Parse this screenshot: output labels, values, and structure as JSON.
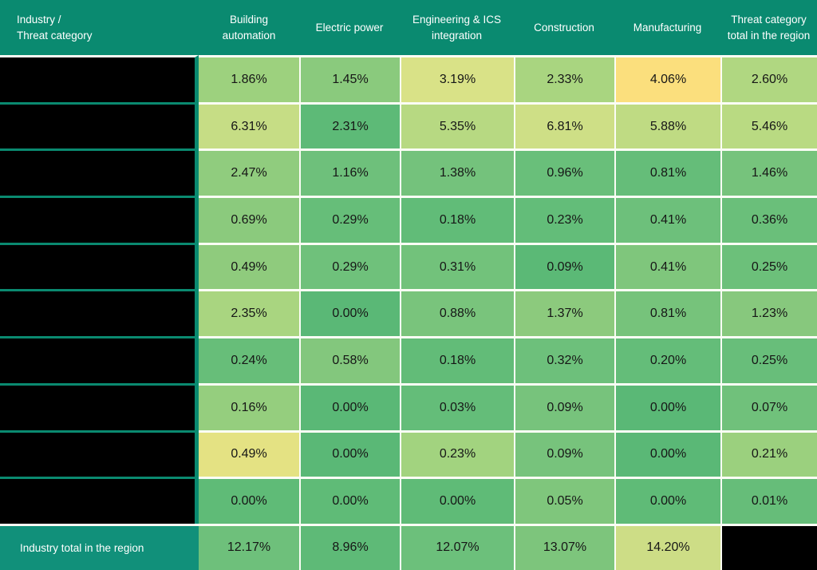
{
  "colors": {
    "header_bg": "#0a8a70",
    "footer_label_bg": "#11907a",
    "separator": "#fbfdf5",
    "redacted": "#000000",
    "header_text": "#ffffff",
    "value_text": "#161616"
  },
  "header": {
    "corner_line1": "Industry /",
    "corner_line2": "Threat category",
    "columns": [
      "Building automation",
      "Electric power",
      "Engineering & ICS integration",
      "Construction",
      "Manufacturing",
      "Threat category total in the region"
    ]
  },
  "body": {
    "rows": [
      [
        {
          "v": "1.86%",
          "bg": "#9dd17e"
        },
        {
          "v": "1.45%",
          "bg": "#8aca7d"
        },
        {
          "v": "3.19%",
          "bg": "#d9e287"
        },
        {
          "v": "2.33%",
          "bg": "#a9d580"
        },
        {
          "v": "4.06%",
          "bg": "#fbdf7d"
        },
        {
          "v": "2.60%",
          "bg": "#b0d781"
        }
      ],
      [
        {
          "v": "6.31%",
          "bg": "#c6dd85"
        },
        {
          "v": "2.31%",
          "bg": "#5dba77"
        },
        {
          "v": "5.35%",
          "bg": "#b7d982"
        },
        {
          "v": "6.81%",
          "bg": "#cedf86"
        },
        {
          "v": "5.88%",
          "bg": "#bfdb83"
        },
        {
          "v": "5.46%",
          "bg": "#b9da82"
        }
      ],
      [
        {
          "v": "2.47%",
          "bg": "#90cc7e"
        },
        {
          "v": "1.16%",
          "bg": "#6ec07b"
        },
        {
          "v": "1.38%",
          "bg": "#74c27c"
        },
        {
          "v": "0.96%",
          "bg": "#69bf7a"
        },
        {
          "v": "0.81%",
          "bg": "#65bd79"
        },
        {
          "v": "1.46%",
          "bg": "#76c37c"
        }
      ],
      [
        {
          "v": "0.69%",
          "bg": "#8bca7d"
        },
        {
          "v": "0.29%",
          "bg": "#66be79"
        },
        {
          "v": "0.18%",
          "bg": "#61bc78"
        },
        {
          "v": "0.23%",
          "bg": "#63bd79"
        },
        {
          "v": "0.41%",
          "bg": "#6dc07b"
        },
        {
          "v": "0.36%",
          "bg": "#6abf7a"
        }
      ],
      [
        {
          "v": "0.49%",
          "bg": "#8fcb7d"
        },
        {
          "v": "0.29%",
          "bg": "#6fc17b"
        },
        {
          "v": "0.31%",
          "bg": "#72c27b"
        },
        {
          "v": "0.09%",
          "bg": "#5bb976"
        },
        {
          "v": "0.41%",
          "bg": "#7fc67c"
        },
        {
          "v": "0.25%",
          "bg": "#6cc07a"
        }
      ],
      [
        {
          "v": "2.35%",
          "bg": "#a9d580"
        },
        {
          "v": "0.00%",
          "bg": "#5ab876"
        },
        {
          "v": "0.88%",
          "bg": "#79c47c"
        },
        {
          "v": "1.37%",
          "bg": "#8cca7d"
        },
        {
          "v": "0.81%",
          "bg": "#76c37b"
        },
        {
          "v": "1.23%",
          "bg": "#87c87d"
        }
      ],
      [
        {
          "v": "0.24%",
          "bg": "#67be79"
        },
        {
          "v": "0.58%",
          "bg": "#83c77d"
        },
        {
          "v": "0.18%",
          "bg": "#62bc78"
        },
        {
          "v": "0.32%",
          "bg": "#6dc07b"
        },
        {
          "v": "0.20%",
          "bg": "#64bd79"
        },
        {
          "v": "0.25%",
          "bg": "#68be7a"
        }
      ],
      [
        {
          "v": "0.16%",
          "bg": "#95ce7e"
        },
        {
          "v": "0.00%",
          "bg": "#5ab876"
        },
        {
          "v": "0.03%",
          "bg": "#64bd79"
        },
        {
          "v": "0.09%",
          "bg": "#77c37c"
        },
        {
          "v": "0.00%",
          "bg": "#5ab876"
        },
        {
          "v": "0.07%",
          "bg": "#70c17b"
        }
      ],
      [
        {
          "v": "0.49%",
          "bg": "#e4e283"
        },
        {
          "v": "0.00%",
          "bg": "#5ab876"
        },
        {
          "v": "0.23%",
          "bg": "#a2d37f"
        },
        {
          "v": "0.09%",
          "bg": "#77c37c"
        },
        {
          "v": "0.00%",
          "bg": "#5ab876"
        },
        {
          "v": "0.21%",
          "bg": "#9bd07e"
        }
      ],
      [
        {
          "v": "0.00%",
          "bg": "#5fbb77"
        },
        {
          "v": "0.00%",
          "bg": "#5fbb77"
        },
        {
          "v": "0.00%",
          "bg": "#5fbb77"
        },
        {
          "v": "0.05%",
          "bg": "#7fc67c"
        },
        {
          "v": "0.00%",
          "bg": "#5fbb77"
        },
        {
          "v": "0.01%",
          "bg": "#66bd79"
        }
      ]
    ]
  },
  "footer": {
    "label": "Industry total in the region",
    "cells": [
      {
        "v": "12.17%",
        "bg": "#6ec07b"
      },
      {
        "v": "8.96%",
        "bg": "#5eba77"
      },
      {
        "v": "12.07%",
        "bg": "#6cc07b"
      },
      {
        "v": "13.07%",
        "bg": "#7dc57c"
      },
      {
        "v": "14.20%",
        "bg": "#cddd86"
      },
      {
        "v": "",
        "bg": "#000000",
        "redacted": true
      }
    ]
  },
  "chart_data": {
    "type": "heatmap",
    "title": "",
    "corner_label": "Industry / Threat category",
    "columns": [
      "Building automation",
      "Electric power",
      "Engineering & ICS integration",
      "Construction",
      "Manufacturing",
      "Threat category total in the region"
    ],
    "row_labels_redacted": true,
    "values_pct": [
      [
        1.86,
        1.45,
        3.19,
        2.33,
        4.06,
        2.6
      ],
      [
        6.31,
        2.31,
        5.35,
        6.81,
        5.88,
        5.46
      ],
      [
        2.47,
        1.16,
        1.38,
        0.96,
        0.81,
        1.46
      ],
      [
        0.69,
        0.29,
        0.18,
        0.23,
        0.41,
        0.36
      ],
      [
        0.49,
        0.29,
        0.31,
        0.09,
        0.41,
        0.25
      ],
      [
        2.35,
        0.0,
        0.88,
        1.37,
        0.81,
        1.23
      ],
      [
        0.24,
        0.58,
        0.18,
        0.32,
        0.2,
        0.25
      ],
      [
        0.16,
        0.0,
        0.03,
        0.09,
        0.0,
        0.07
      ],
      [
        0.49,
        0.0,
        0.23,
        0.09,
        0.0,
        0.21
      ],
      [
        0.0,
        0.0,
        0.0,
        0.05,
        0.0,
        0.01
      ]
    ],
    "footer_label": "Industry total in the region",
    "footer_values_pct": [
      12.17,
      8.96,
      12.07,
      13.07,
      14.2,
      null
    ],
    "footer_last_cell_redacted": true,
    "colormap": "green (low) to yellow (high), per-row shading",
    "legend": "none",
    "grid": "white cell separators; black redacted row-label column"
  }
}
